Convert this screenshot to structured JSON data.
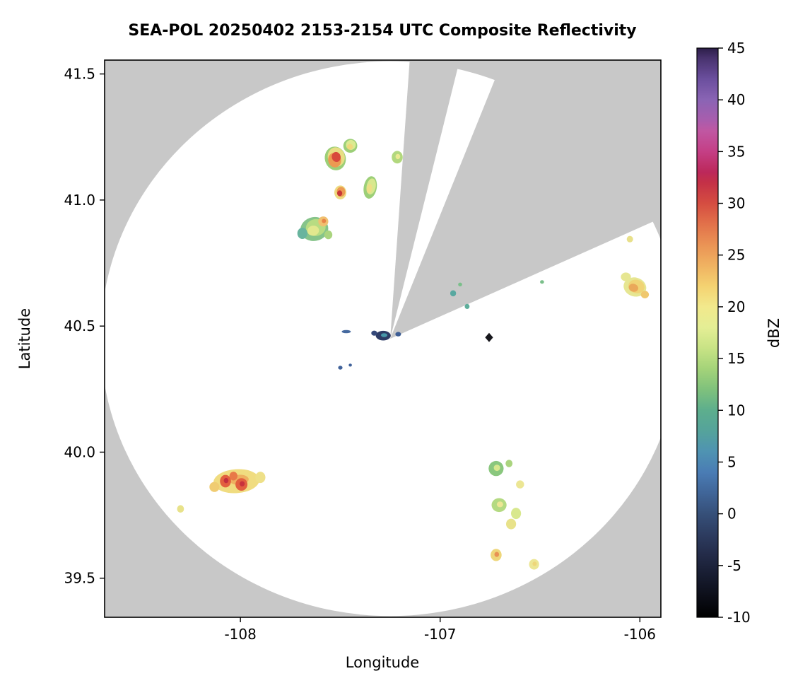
{
  "title": "SEA-POL 20250402 2153-2154 UTC Composite Reflectivity",
  "chart_data": {
    "type": "heatmap",
    "title": "SEA-POL 20250402 2153-2154 UTC Composite Reflectivity",
    "xlabel": "Longitude",
    "ylabel": "Latitude",
    "xlim": [
      -108.68,
      -105.895
    ],
    "ylim": [
      39.345,
      41.555
    ],
    "xtick_values": [
      -108,
      -107,
      -106
    ],
    "xtick_labels": [
      "-108",
      "-107",
      "-106"
    ],
    "ytick_values": [
      39.5,
      40.0,
      40.5,
      41.0,
      41.5
    ],
    "ytick_labels": [
      "39.5",
      "40.0",
      "40.5",
      "41.0",
      "41.5"
    ],
    "grid": false,
    "colors": {
      "background": "#c8c8c8",
      "coverage": "#ffffff",
      "frame": "#000000"
    },
    "radar": {
      "center_lon": -107.25,
      "center_lat": 40.45,
      "radius_lon": 1.45,
      "radius_lat": 1.1,
      "blanked_sectors_deg": [
        [
          4,
          14
        ],
        [
          22,
          66
        ]
      ]
    },
    "colorbar": {
      "label": "dBZ",
      "min": -10,
      "max": 45,
      "tick_values": [
        -10,
        -5,
        0,
        5,
        10,
        15,
        20,
        25,
        30,
        35,
        40,
        45
      ],
      "tick_labels": [
        "-10",
        "-5",
        "0",
        "5",
        "10",
        "15",
        "20",
        "25",
        "30",
        "35",
        "40",
        "45"
      ],
      "stops": [
        [
          -10,
          "#000000"
        ],
        [
          -8,
          "#0c0e18"
        ],
        [
          -6,
          "#171c30"
        ],
        [
          -4,
          "#232b48"
        ],
        [
          -2,
          "#2d3c60"
        ],
        [
          0,
          "#365079"
        ],
        [
          2,
          "#406598"
        ],
        [
          4,
          "#4a7cb4"
        ],
        [
          6,
          "#4f93b2"
        ],
        [
          8,
          "#55a39b"
        ],
        [
          10,
          "#5dae8d"
        ],
        [
          12,
          "#7fc17c"
        ],
        [
          14,
          "#a4d379"
        ],
        [
          16,
          "#c8e385"
        ],
        [
          18,
          "#e4ee95"
        ],
        [
          20,
          "#f2e98c"
        ],
        [
          22,
          "#f4d271"
        ],
        [
          24,
          "#f0b261"
        ],
        [
          26,
          "#ea9355"
        ],
        [
          28,
          "#e2714a"
        ],
        [
          30,
          "#d54d41"
        ],
        [
          32,
          "#c43147"
        ],
        [
          33,
          "#bc285a"
        ],
        [
          35,
          "#c43f85"
        ],
        [
          37,
          "#c057a2"
        ],
        [
          38,
          "#a95dad"
        ],
        [
          40,
          "#8a64b4"
        ],
        [
          42,
          "#6b4f9e"
        ],
        [
          44,
          "#49336f"
        ],
        [
          45,
          "#2c1e49"
        ]
      ]
    },
    "echoes": [
      {
        "lon": -107.525,
        "lat": 41.165,
        "w": 0.105,
        "h": 0.095,
        "rot": -15,
        "layers": [
          "#9ccf78",
          "#e8de84",
          "#ec9a52",
          "#d8483c"
        ]
      },
      {
        "lon": -107.45,
        "lat": 41.215,
        "w": 0.07,
        "h": 0.055,
        "rot": -20,
        "layers": [
          "#9ccf78",
          "#dcea90",
          "#f0d87c"
        ]
      },
      {
        "lon": -107.215,
        "lat": 41.17,
        "w": 0.055,
        "h": 0.05,
        "rot": 0,
        "layers": [
          "#b2d87e",
          "#ecea92"
        ]
      },
      {
        "lon": -107.5,
        "lat": 41.03,
        "w": 0.06,
        "h": 0.055,
        "rot": 0,
        "layers": [
          "#eeda80",
          "#ec9a52",
          "#c83838"
        ]
      },
      {
        "lon": -107.35,
        "lat": 41.05,
        "w": 0.065,
        "h": 0.09,
        "rot": 10,
        "layers": [
          "#9ccf78",
          "#d8e88e",
          "#eede86"
        ]
      },
      {
        "lon": -107.63,
        "lat": 40.885,
        "w": 0.14,
        "h": 0.095,
        "rot": -10,
        "layers": [
          "#86c48a",
          "#b8dc82",
          "#e2e88e"
        ]
      },
      {
        "lon": -107.585,
        "lat": 40.915,
        "w": 0.05,
        "h": 0.04,
        "rot": 0,
        "layers": [
          "#f0c070",
          "#e88448"
        ]
      },
      {
        "lon": -107.69,
        "lat": 40.868,
        "w": 0.05,
        "h": 0.045,
        "rot": 0,
        "layers": [
          "#68b49e"
        ]
      },
      {
        "lon": -107.56,
        "lat": 40.862,
        "w": 0.04,
        "h": 0.035,
        "rot": 0,
        "layers": [
          "#aad47e"
        ]
      },
      {
        "lon": -107.285,
        "lat": 40.462,
        "w": 0.075,
        "h": 0.038,
        "rot": 0,
        "layers": [
          "#2e3c66",
          "#4898aa"
        ]
      },
      {
        "lon": -107.33,
        "lat": 40.472,
        "w": 0.03,
        "h": 0.02,
        "rot": 0,
        "layers": [
          "#35497a"
        ]
      },
      {
        "lon": -107.21,
        "lat": 40.468,
        "w": 0.028,
        "h": 0.018,
        "rot": 0,
        "layers": [
          "#3e5e95"
        ]
      },
      {
        "lon": -107.47,
        "lat": 40.478,
        "w": 0.045,
        "h": 0.013,
        "rot": 0,
        "layers": [
          "#45699f"
        ]
      },
      {
        "lon": -107.5,
        "lat": 40.335,
        "w": 0.022,
        "h": 0.015,
        "rot": 0,
        "layers": [
          "#40629a"
        ]
      },
      {
        "lon": -107.45,
        "lat": 40.345,
        "w": 0.016,
        "h": 0.012,
        "rot": 0,
        "layers": [
          "#40629a"
        ]
      },
      {
        "lon": -106.935,
        "lat": 40.63,
        "w": 0.03,
        "h": 0.024,
        "rot": 0,
        "layers": [
          "#58a8a0"
        ]
      },
      {
        "lon": -106.865,
        "lat": 40.578,
        "w": 0.024,
        "h": 0.02,
        "rot": 0,
        "layers": [
          "#5fae9b"
        ]
      },
      {
        "lon": -106.9,
        "lat": 40.665,
        "w": 0.02,
        "h": 0.015,
        "rot": 0,
        "layers": [
          "#7abf8a"
        ]
      },
      {
        "lon": -106.49,
        "lat": 40.675,
        "w": 0.02,
        "h": 0.014,
        "rot": 0,
        "layers": [
          "#7abf8a"
        ]
      },
      {
        "lon": -106.025,
        "lat": 40.655,
        "w": 0.115,
        "h": 0.075,
        "rot": 15,
        "layers": [
          "#e6e692",
          "#f0d476",
          "#eaa85a"
        ]
      },
      {
        "lon": -106.07,
        "lat": 40.695,
        "w": 0.05,
        "h": 0.035,
        "rot": 0,
        "layers": [
          "#e6e692"
        ]
      },
      {
        "lon": -105.975,
        "lat": 40.625,
        "w": 0.04,
        "h": 0.03,
        "rot": 0,
        "layers": [
          "#f0c86e"
        ]
      },
      {
        "lon": -106.05,
        "lat": 40.845,
        "w": 0.032,
        "h": 0.026,
        "rot": 0,
        "layers": [
          "#e8e08a"
        ]
      },
      {
        "lon": -108.02,
        "lat": 39.885,
        "w": 0.23,
        "h": 0.095,
        "rot": -4,
        "layers": [
          "#f0dc80",
          "#eeb060"
        ]
      },
      {
        "lon": -108.075,
        "lat": 39.885,
        "w": 0.055,
        "h": 0.05,
        "rot": 0,
        "layers": [
          "#e2603f",
          "#c22f3e"
        ]
      },
      {
        "lon": -107.995,
        "lat": 39.872,
        "w": 0.06,
        "h": 0.05,
        "rot": 0,
        "layers": [
          "#e2603f",
          "#c8323c"
        ]
      },
      {
        "lon": -108.035,
        "lat": 39.905,
        "w": 0.04,
        "h": 0.035,
        "rot": 0,
        "layers": [
          "#e87848"
        ]
      },
      {
        "lon": -107.9,
        "lat": 39.9,
        "w": 0.05,
        "h": 0.045,
        "rot": 0,
        "layers": [
          "#eee088"
        ]
      },
      {
        "lon": -108.13,
        "lat": 39.862,
        "w": 0.05,
        "h": 0.04,
        "rot": 0,
        "layers": [
          "#f0cc72"
        ]
      },
      {
        "lon": -108.3,
        "lat": 39.775,
        "w": 0.035,
        "h": 0.03,
        "rot": 0,
        "layers": [
          "#e8e28a"
        ]
      },
      {
        "lon": -106.72,
        "lat": 39.935,
        "w": 0.075,
        "h": 0.06,
        "rot": 0,
        "layers": [
          "#8ac77e",
          "#d8e88e"
        ]
      },
      {
        "lon": -106.655,
        "lat": 39.955,
        "w": 0.035,
        "h": 0.03,
        "rot": 0,
        "layers": [
          "#aad47e"
        ]
      },
      {
        "lon": -106.6,
        "lat": 39.872,
        "w": 0.04,
        "h": 0.032,
        "rot": 0,
        "layers": [
          "#ece694"
        ]
      },
      {
        "lon": -106.705,
        "lat": 39.79,
        "w": 0.075,
        "h": 0.055,
        "rot": 0,
        "layers": [
          "#b4da82",
          "#ece694"
        ]
      },
      {
        "lon": -106.62,
        "lat": 39.757,
        "w": 0.05,
        "h": 0.045,
        "rot": 0,
        "layers": [
          "#d8e88e"
        ]
      },
      {
        "lon": -106.645,
        "lat": 39.715,
        "w": 0.05,
        "h": 0.042,
        "rot": 0,
        "layers": [
          "#e8e28a"
        ]
      },
      {
        "lon": -106.72,
        "lat": 39.592,
        "w": 0.055,
        "h": 0.048,
        "rot": 0,
        "layers": [
          "#eed67a",
          "#e89254"
        ]
      },
      {
        "lon": -106.53,
        "lat": 39.555,
        "w": 0.05,
        "h": 0.042,
        "rot": 0,
        "layers": [
          "#ece694",
          "#eed67a"
        ]
      }
    ],
    "markers": [
      {
        "shape": "diamond",
        "lon": -106.755,
        "lat": 40.455,
        "size_deg": 0.04,
        "color": "#17171c"
      }
    ]
  }
}
